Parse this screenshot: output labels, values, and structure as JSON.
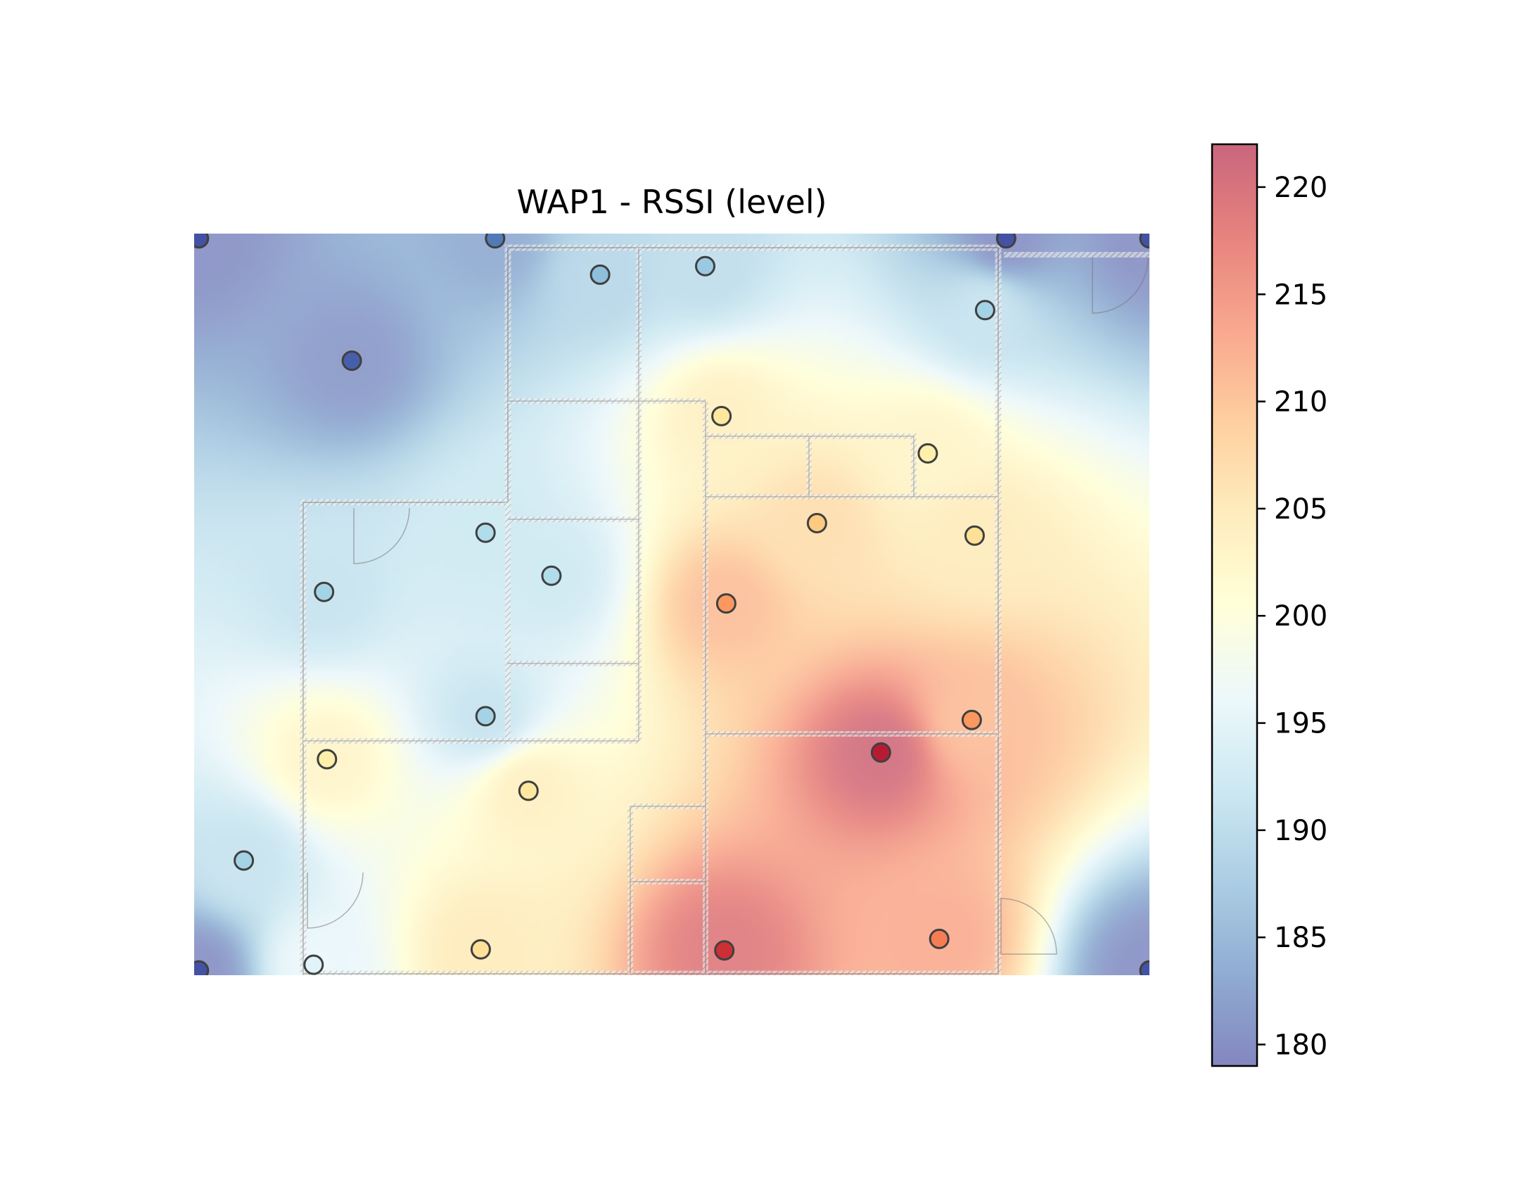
{
  "chart_data": {
    "type": "heatmap",
    "title": "WAP1 - RSSI (level)",
    "colormap": "RdYlBu_r",
    "value_range": [
      179,
      222
    ],
    "xlim": [
      0,
      1000
    ],
    "ylim": [
      0,
      776
    ],
    "grid": false,
    "colorbar": {
      "ticks": [
        "180",
        "185",
        "190",
        "195",
        "200",
        "205",
        "210",
        "215",
        "220"
      ],
      "placement": "right"
    },
    "points": [
      {
        "x": 5,
        "y": 771,
        "v": 180
      },
      {
        "x": 315,
        "y": 771,
        "v": 183
      },
      {
        "x": 850,
        "y": 771,
        "v": 180
      },
      {
        "x": 1000,
        "y": 771,
        "v": 180
      },
      {
        "x": 425,
        "y": 733,
        "v": 189
      },
      {
        "x": 535,
        "y": 742,
        "v": 190
      },
      {
        "x": 828,
        "y": 696,
        "v": 191
      },
      {
        "x": 165,
        "y": 643,
        "v": 181
      },
      {
        "x": 552,
        "y": 585,
        "v": 204
      },
      {
        "x": 768,
        "y": 546,
        "v": 203
      },
      {
        "x": 305,
        "y": 463,
        "v": 192
      },
      {
        "x": 652,
        "y": 473,
        "v": 207
      },
      {
        "x": 817,
        "y": 460,
        "v": 205
      },
      {
        "x": 374,
        "y": 418,
        "v": 192
      },
      {
        "x": 136,
        "y": 401,
        "v": 191
      },
      {
        "x": 557,
        "y": 389,
        "v": 211
      },
      {
        "x": 305,
        "y": 271,
        "v": 191
      },
      {
        "x": 814,
        "y": 267,
        "v": 211
      },
      {
        "x": 719,
        "y": 233,
        "v": 221
      },
      {
        "x": 139,
        "y": 226,
        "v": 203
      },
      {
        "x": 350,
        "y": 193,
        "v": 204
      },
      {
        "x": 52,
        "y": 120,
        "v": 191
      },
      {
        "x": 125,
        "y": 11,
        "v": 196
      },
      {
        "x": 300,
        "y": 27,
        "v": 205
      },
      {
        "x": 555,
        "y": 26,
        "v": 219
      },
      {
        "x": 780,
        "y": 38,
        "v": 213
      },
      {
        "x": 5,
        "y": 5,
        "v": 180
      },
      {
        "x": 1000,
        "y": 5,
        "v": 180
      }
    ]
  }
}
